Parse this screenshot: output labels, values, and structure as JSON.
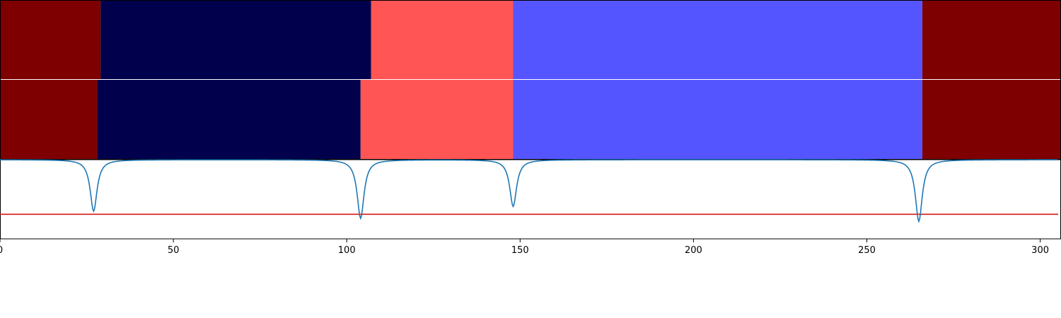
{
  "chart_data": {
    "type": "segmentation",
    "xlim": [
      0,
      306
    ],
    "x_ticks": [
      0,
      50,
      100,
      150,
      200,
      250,
      300
    ],
    "x_tick_labels": [
      "0",
      "50",
      "100",
      "150",
      "200",
      "250",
      "300"
    ],
    "palette": {
      "dark_red": "#7f0000",
      "navy": "#00004c",
      "light_red": "#ff5555",
      "light_blue": "#5555ff"
    },
    "rows": [
      {
        "segments": [
          {
            "start": 0,
            "end": 29,
            "color": "dark_red"
          },
          {
            "start": 29,
            "end": 107,
            "color": "navy"
          },
          {
            "start": 107,
            "end": 148,
            "color": "light_red"
          },
          {
            "start": 148,
            "end": 266,
            "color": "light_blue"
          },
          {
            "start": 266,
            "end": 306,
            "color": "dark_red"
          }
        ]
      },
      {
        "segments": [
          {
            "start": 0,
            "end": 28,
            "color": "dark_red"
          },
          {
            "start": 28,
            "end": 104,
            "color": "navy"
          },
          {
            "start": 104,
            "end": 148,
            "color": "light_red"
          },
          {
            "start": 148,
            "end": 266,
            "color": "light_blue"
          },
          {
            "start": 266,
            "end": 306,
            "color": "dark_red"
          }
        ]
      }
    ],
    "signal": {
      "color": "#1f77b4",
      "baseline": 1.0,
      "ylim": [
        0,
        1
      ],
      "dips": [
        {
          "x": 27,
          "min": 0.35
        },
        {
          "x": 104,
          "min": 0.26
        },
        {
          "x": 148,
          "min": 0.41
        },
        {
          "x": 265,
          "min": 0.22
        }
      ]
    },
    "threshold": {
      "value": 0.31,
      "color": "#d62728"
    }
  }
}
